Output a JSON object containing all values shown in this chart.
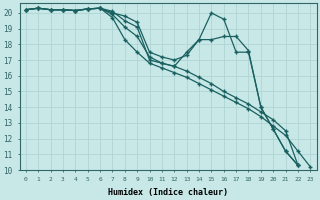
{
  "xlabel": "Humidex (Indice chaleur)",
  "bg_color": "#c8e8e8",
  "grid_color": "#b0d4d4",
  "line_color": "#1a6060",
  "xlim": [
    -0.5,
    23.5
  ],
  "ylim": [
    10,
    20.6
  ],
  "xticks": [
    0,
    1,
    2,
    3,
    4,
    5,
    6,
    7,
    8,
    9,
    10,
    11,
    12,
    13,
    14,
    15,
    16,
    17,
    18,
    19,
    20,
    21,
    22,
    23
  ],
  "yticks": [
    10,
    11,
    12,
    13,
    14,
    15,
    16,
    17,
    18,
    19,
    20
  ],
  "lines": [
    {
      "x": [
        0,
        1,
        2,
        3,
        4,
        5,
        6,
        7,
        8,
        9,
        10,
        11,
        12,
        13,
        14,
        15,
        16,
        17,
        18,
        19,
        20,
        21,
        22,
        23
      ],
      "y": [
        20.2,
        20.3,
        20.2,
        20.2,
        20.15,
        20.25,
        20.3,
        20.1,
        19.5,
        19.1,
        17.0,
        16.8,
        16.6,
        17.5,
        18.3,
        20.0,
        19.6,
        17.5,
        17.5,
        14.0,
        12.6,
        11.2,
        10.3,
        null
      ]
    },
    {
      "x": [
        0,
        1,
        2,
        3,
        4,
        5,
        6,
        7,
        8,
        9,
        10,
        11,
        12,
        13,
        14,
        15,
        16,
        17,
        18,
        19,
        20,
        21,
        22,
        23
      ],
      "y": [
        20.2,
        20.3,
        20.2,
        20.2,
        20.15,
        20.25,
        20.3,
        20.0,
        19.8,
        19.4,
        17.5,
        17.2,
        17.0,
        17.3,
        18.3,
        18.3,
        18.5,
        18.5,
        17.6,
        14.0,
        12.6,
        11.2,
        10.3,
        null
      ]
    },
    {
      "x": [
        0,
        1,
        2,
        3,
        4,
        5,
        6,
        7,
        8,
        9,
        10,
        11,
        12,
        13,
        14,
        15,
        16,
        17,
        18,
        19,
        20,
        21,
        22,
        23
      ],
      "y": [
        20.2,
        20.3,
        20.2,
        20.2,
        20.15,
        20.25,
        20.3,
        19.9,
        19.1,
        18.5,
        17.2,
        16.8,
        16.6,
        16.3,
        15.9,
        15.5,
        15.0,
        14.6,
        14.2,
        13.7,
        13.2,
        12.5,
        10.3,
        null
      ]
    },
    {
      "x": [
        0,
        1,
        2,
        3,
        4,
        5,
        6,
        7,
        8,
        9,
        10,
        11,
        12,
        13,
        14,
        15,
        16,
        17,
        18,
        19,
        20,
        21,
        22,
        23
      ],
      "y": [
        20.2,
        20.3,
        20.2,
        20.2,
        20.15,
        20.25,
        20.3,
        19.7,
        18.3,
        17.5,
        16.8,
        16.5,
        16.2,
        15.9,
        15.5,
        15.1,
        14.7,
        14.3,
        13.9,
        13.4,
        12.8,
        12.2,
        11.2,
        10.2
      ]
    }
  ]
}
